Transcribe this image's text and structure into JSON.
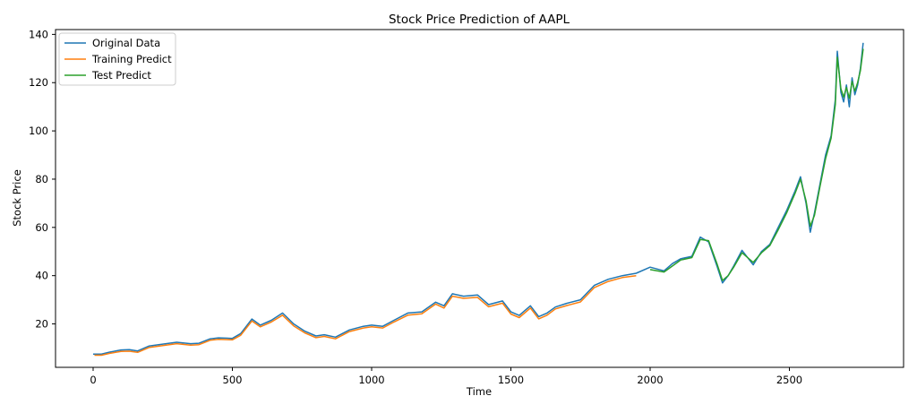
{
  "chart_data": {
    "type": "line",
    "title": "Stock Price Prediction of AAPL",
    "xlabel": "Time",
    "ylabel": "Stock Price",
    "xlim": [
      -135,
      2910
    ],
    "ylim": [
      2,
      142
    ],
    "xticks": [
      0,
      500,
      1000,
      1500,
      2000,
      2500
    ],
    "yticks": [
      20,
      40,
      60,
      80,
      100,
      120,
      140
    ],
    "grid": false,
    "legend_position": "top-left",
    "colors": {
      "original": "#1f77b4",
      "training": "#ff7f0e",
      "test": "#2ca02c"
    },
    "series": [
      {
        "name": "Original Data",
        "color": "#1f77b4",
        "x": [
          0,
          30,
          60,
          100,
          130,
          160,
          200,
          250,
          300,
          350,
          380,
          420,
          450,
          500,
          530,
          570,
          600,
          640,
          680,
          720,
          760,
          800,
          830,
          870,
          920,
          970,
          1000,
          1040,
          1080,
          1130,
          1180,
          1230,
          1260,
          1290,
          1330,
          1380,
          1420,
          1470,
          1500,
          1530,
          1570,
          1600,
          1630,
          1660,
          1700,
          1750,
          1800,
          1850,
          1900,
          1950,
          2000,
          2050,
          2080,
          2110,
          2150,
          2180,
          2210,
          2240,
          2260,
          2280,
          2300,
          2330,
          2370,
          2400,
          2430,
          2460,
          2490,
          2520,
          2540,
          2560,
          2575,
          2590,
          2610,
          2630,
          2650,
          2665,
          2672,
          2685,
          2695,
          2705,
          2715,
          2725,
          2735,
          2745,
          2755,
          2765
        ],
        "y": [
          7.5,
          7.5,
          8.3,
          9.2,
          9.3,
          8.8,
          10.8,
          11.6,
          12.4,
          11.8,
          12.0,
          13.8,
          14.2,
          14.0,
          16.0,
          22.0,
          19.5,
          21.5,
          24.5,
          20.0,
          17.0,
          15.0,
          15.5,
          14.5,
          17.5,
          19.0,
          19.5,
          19.0,
          21.5,
          24.5,
          25.0,
          29.0,
          27.5,
          32.5,
          31.5,
          32.0,
          28.0,
          29.5,
          25.0,
          23.5,
          27.5,
          23.0,
          24.5,
          27.0,
          28.5,
          30.0,
          36.0,
          38.5,
          40.0,
          41.0,
          43.5,
          42.0,
          45.0,
          47.0,
          48.0,
          56.0,
          54.0,
          44.0,
          37.0,
          40.0,
          44.0,
          50.5,
          44.5,
          50.0,
          53.0,
          60.0,
          67.0,
          75.0,
          81.0,
          70.0,
          58.0,
          66.0,
          78.0,
          90.0,
          98.0,
          113.0,
          133.0,
          116.0,
          112.0,
          119.0,
          110.0,
          122.0,
          115.0,
          119.0,
          126.0,
          136.5
        ]
      },
      {
        "name": "Training Predict",
        "color": "#ff7f0e",
        "x": [
          5,
          30,
          60,
          100,
          130,
          160,
          200,
          250,
          300,
          350,
          380,
          420,
          450,
          500,
          530,
          570,
          600,
          640,
          680,
          720,
          760,
          800,
          830,
          870,
          920,
          970,
          1000,
          1040,
          1080,
          1130,
          1180,
          1230,
          1260,
          1290,
          1330,
          1380,
          1420,
          1470,
          1500,
          1530,
          1570,
          1600,
          1630,
          1660,
          1700,
          1750,
          1800,
          1850,
          1900,
          1950
        ],
        "y": [
          7.0,
          7.0,
          7.8,
          8.6,
          8.7,
          8.2,
          10.2,
          11.0,
          11.8,
          11.2,
          11.4,
          13.2,
          13.6,
          13.4,
          15.3,
          21.2,
          18.8,
          20.8,
          23.6,
          19.2,
          16.3,
          14.3,
          14.8,
          13.8,
          16.8,
          18.3,
          18.8,
          18.3,
          20.8,
          23.6,
          24.2,
          28.2,
          26.6,
          31.5,
          30.6,
          31.0,
          27.1,
          28.6,
          24.1,
          22.6,
          26.6,
          22.1,
          23.6,
          26.2,
          27.6,
          29.1,
          35.1,
          37.6,
          39.2,
          40.0
        ]
      },
      {
        "name": "Test Predict",
        "color": "#2ca02c",
        "x": [
          2000,
          2050,
          2080,
          2110,
          2150,
          2180,
          2210,
          2240,
          2260,
          2280,
          2300,
          2330,
          2370,
          2400,
          2430,
          2460,
          2490,
          2520,
          2540,
          2560,
          2575,
          2590,
          2610,
          2630,
          2650,
          2665,
          2672,
          2685,
          2695,
          2705,
          2715,
          2725,
          2735,
          2745,
          2755,
          2765
        ],
        "y": [
          42.5,
          41.5,
          44.0,
          46.5,
          47.5,
          55.0,
          54.5,
          45.0,
          38.0,
          40.0,
          43.5,
          49.5,
          45.5,
          49.5,
          52.5,
          59.0,
          66.0,
          74.0,
          80.0,
          71.0,
          60.5,
          65.0,
          77.0,
          88.5,
          97.0,
          111.0,
          130.5,
          117.5,
          114.0,
          118.0,
          113.5,
          120.5,
          116.5,
          120.0,
          125.0,
          134.0
        ]
      }
    ]
  }
}
